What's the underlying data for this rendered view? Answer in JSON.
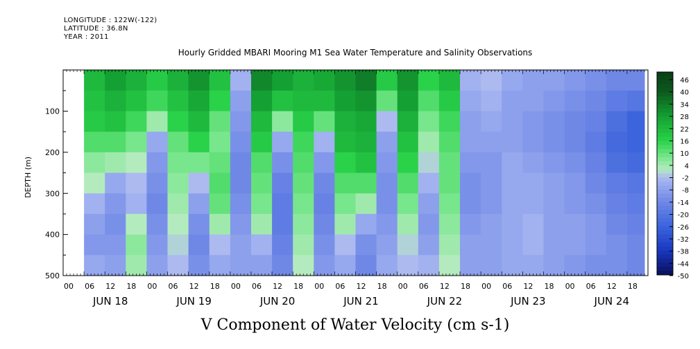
{
  "header": {
    "longitude": "LONGITUDE : 122W(-122)",
    "latitude": "LATITUDE : 36.8N",
    "year": "YEAR : 2011"
  },
  "chart_data": {
    "type": "heatmap",
    "title": "Hourly Gridded MBARI Mooring M1 Sea Water Temperature and Salinity Observations",
    "subtitle": "V Component of Water Velocity (cm s-1)",
    "ylabel": "DEPTH (m)",
    "ylim": [
      500,
      0
    ],
    "y_inverted": true,
    "y_ticks": [
      100,
      200,
      300,
      400,
      500
    ],
    "x_hour_ticks": [
      "00",
      "06",
      "12",
      "18",
      "00",
      "06",
      "12",
      "18",
      "00",
      "06",
      "12",
      "18",
      "00",
      "06",
      "12",
      "18",
      "00",
      "06",
      "12",
      "18",
      "00",
      "06",
      "12",
      "18",
      "00",
      "06",
      "12",
      "18"
    ],
    "x_day_labels": [
      "JUN 18",
      "JUN 19",
      "JUN 20",
      "JUN 21",
      "JUN 22",
      "JUN 23",
      "JUN 24"
    ],
    "x_range": [
      "2011-06-18T00:00",
      "2011-06-24T23:59"
    ],
    "colorbar": {
      "labels": [
        "46",
        "40",
        "34",
        "28",
        "22",
        "16",
        "10",
        "4",
        "-2",
        "-8",
        "-14",
        "-20",
        "-26",
        "-32",
        "-38",
        "-44",
        "-50"
      ],
      "min": -50,
      "max": 50
    },
    "colors": {
      "strong_positive": "#0a3d16",
      "positive": "#2ad24a",
      "near_zero": "#a9b8f0",
      "negative": "#6f88e6",
      "strong_negative": "#0a0f5e"
    },
    "columns": [
      {
        "time": "2011-06-18T06:00",
        "v": [
          22,
          20,
          18,
          12,
          6,
          2,
          -4,
          -8,
          -10,
          -6
        ]
      },
      {
        "time": "2011-06-18T12:00",
        "v": [
          28,
          24,
          20,
          12,
          4,
          -6,
          -10,
          -12,
          -10,
          -8
        ]
      },
      {
        "time": "2011-06-18T18:00",
        "v": [
          24,
          20,
          14,
          8,
          2,
          -2,
          -4,
          2,
          6,
          4
        ]
      },
      {
        "time": "2011-06-19T00:00",
        "v": [
          18,
          14,
          4,
          -6,
          -10,
          -12,
          -14,
          -12,
          -10,
          -8
        ]
      },
      {
        "time": "2011-06-19T06:00",
        "v": [
          24,
          20,
          16,
          10,
          8,
          6,
          4,
          2,
          0,
          -2
        ]
      },
      {
        "time": "2011-06-19T12:00",
        "v": [
          30,
          26,
          22,
          16,
          8,
          -2,
          -8,
          -12,
          -14,
          -12
        ]
      },
      {
        "time": "2011-06-19T18:00",
        "v": [
          20,
          16,
          10,
          8,
          10,
          12,
          10,
          4,
          -2,
          -6
        ]
      },
      {
        "time": "2011-06-20T00:00",
        "v": [
          -4,
          -8,
          -10,
          -12,
          -14,
          -14,
          -12,
          -10,
          -8,
          -8
        ]
      },
      {
        "time": "2011-06-20T06:00",
        "v": [
          32,
          28,
          22,
          18,
          12,
          10,
          8,
          4,
          -4,
          -8
        ]
      },
      {
        "time": "2011-06-20T12:00",
        "v": [
          28,
          20,
          6,
          -6,
          -12,
          -16,
          -18,
          -18,
          -16,
          -14
        ]
      },
      {
        "time": "2011-06-20T18:00",
        "v": [
          24,
          22,
          18,
          14,
          12,
          10,
          8,
          6,
          4,
          2
        ]
      },
      {
        "time": "2011-06-21T00:00",
        "v": [
          26,
          22,
          10,
          -4,
          -10,
          -14,
          -16,
          -14,
          -12,
          -10
        ]
      },
      {
        "time": "2011-06-21T06:00",
        "v": [
          30,
          28,
          24,
          22,
          16,
          12,
          8,
          4,
          -2,
          -6
        ]
      },
      {
        "time": "2011-06-21T12:00",
        "v": [
          34,
          30,
          26,
          24,
          20,
          12,
          4,
          -6,
          -12,
          -14
        ]
      },
      {
        "time": "2011-06-21T18:00",
        "v": [
          18,
          10,
          -2,
          -8,
          -10,
          -12,
          -12,
          -10,
          -8,
          -6
        ]
      },
      {
        "time": "2011-06-22T00:00",
        "v": [
          30,
          28,
          24,
          20,
          16,
          12,
          8,
          4,
          0,
          -2
        ]
      },
      {
        "time": "2011-06-22T06:00",
        "v": [
          16,
          12,
          8,
          4,
          0,
          -4,
          -8,
          -10,
          -8,
          -4
        ]
      },
      {
        "time": "2011-06-22T12:00",
        "v": [
          22,
          18,
          14,
          12,
          10,
          10,
          8,
          6,
          4,
          2
        ]
      },
      {
        "time": "2011-06-22T18:00",
        "v": [
          -4,
          -6,
          -8,
          -8,
          -10,
          -12,
          -12,
          -10,
          -8,
          -8
        ]
      },
      {
        "time": "2011-06-23T00:00",
        "v": [
          -2,
          -4,
          -6,
          -8,
          -10,
          -10,
          -10,
          -8,
          -8,
          -8
        ]
      },
      {
        "time": "2011-06-23T06:00",
        "v": [
          -6,
          -8,
          -8,
          -8,
          -6,
          -6,
          -6,
          -6,
          -6,
          -6
        ]
      },
      {
        "time": "2011-06-23T12:00",
        "v": [
          -8,
          -8,
          -10,
          -10,
          -8,
          -6,
          -6,
          -4,
          -4,
          -6
        ]
      },
      {
        "time": "2011-06-23T18:00",
        "v": [
          -8,
          -10,
          -12,
          -12,
          -10,
          -8,
          -8,
          -8,
          -8,
          -8
        ]
      },
      {
        "time": "2011-06-24T00:00",
        "v": [
          -10,
          -12,
          -14,
          -14,
          -12,
          -10,
          -10,
          -8,
          -8,
          -10
        ]
      },
      {
        "time": "2011-06-24T06:00",
        "v": [
          -12,
          -14,
          -16,
          -18,
          -16,
          -14,
          -12,
          -10,
          -10,
          -12
        ]
      },
      {
        "time": "2011-06-24T12:00",
        "v": [
          -14,
          -18,
          -22,
          -24,
          -22,
          -18,
          -16,
          -14,
          -12,
          -12
        ]
      },
      {
        "time": "2011-06-24T18:00",
        "v": [
          -14,
          -20,
          -26,
          -26,
          -24,
          -20,
          -18,
          -16,
          -14,
          -14
        ]
      }
    ],
    "column_depths": [
      25,
      75,
      125,
      175,
      225,
      275,
      325,
      375,
      425,
      475
    ]
  }
}
